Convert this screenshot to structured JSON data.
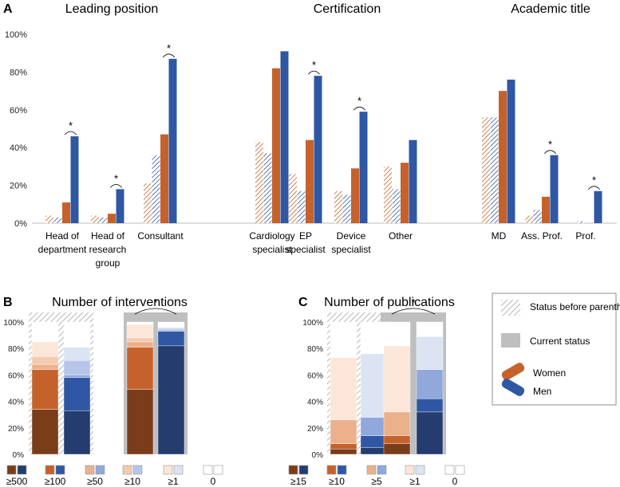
{
  "colors": {
    "women": "#c5622c",
    "men": "#2f57a3",
    "axis": "#bdbdbd",
    "women_shades": [
      "#7a3d1a",
      "#c5622c",
      "#ebb18b",
      "#f5cbb0",
      "#fbe6d9",
      "#ffffff"
    ],
    "men_shades": [
      "#243c6e",
      "#2f57a3",
      "#90a8dc",
      "#b7c6e8",
      "#dce4f4",
      "#ffffff"
    ],
    "current_frame": "#bfbfbf",
    "hatch_frame": "#c8c8c8"
  },
  "panel_a": {
    "label": "A",
    "y_ticks": [
      "100%",
      "80%",
      "60%",
      "40%",
      "20%",
      "0%"
    ],
    "star": "*",
    "sections": [
      {
        "title": "Leading position"
      },
      {
        "title": "Certification"
      },
      {
        "title": "Academic title"
      }
    ],
    "chart_data": {
      "type": "bar",
      "title": "",
      "ylim": [
        0,
        100
      ],
      "unit": "%",
      "series": [
        {
          "name": "Women – before parenthood (hatched)"
        },
        {
          "name": "Men – before parenthood (hatched)"
        },
        {
          "name": "Women – current status"
        },
        {
          "name": "Men – current status"
        }
      ],
      "groups": [
        {
          "label_lines": [
            "Head of",
            "department"
          ],
          "section": 0,
          "values": [
            4,
            3,
            11,
            46
          ],
          "sig": true
        },
        {
          "label_lines": [
            "Head of",
            "research",
            "group"
          ],
          "section": 0,
          "values": [
            4,
            3,
            5,
            18
          ],
          "sig": true
        },
        {
          "label_lines": [
            "Consultant"
          ],
          "section": 0,
          "values": [
            21,
            36,
            47,
            87
          ],
          "sig": true
        },
        {
          "label_lines": [
            "Cardiology",
            "specialist"
          ],
          "section": 1,
          "values": [
            43,
            37,
            82,
            91
          ],
          "sig": false
        },
        {
          "label_lines": [
            "EP",
            "specialist"
          ],
          "section": 1,
          "values": [
            26,
            17,
            44,
            78
          ],
          "sig": true
        },
        {
          "label_lines": [
            "Device",
            "specialist"
          ],
          "section": 1,
          "values": [
            17,
            15,
            29,
            59
          ],
          "sig": true
        },
        {
          "label_lines": [
            "Other"
          ],
          "section": 1,
          "values": [
            30,
            18,
            32,
            44
          ],
          "sig": false
        },
        {
          "label_lines": [
            "MD"
          ],
          "section": 2,
          "values": [
            56,
            56,
            70,
            76
          ],
          "sig": false
        },
        {
          "label_lines": [
            "Ass. Prof."
          ],
          "section": 2,
          "values": [
            4,
            7,
            14,
            36
          ],
          "sig": true
        },
        {
          "label_lines": [
            "Prof."
          ],
          "section": 2,
          "values": [
            0,
            1,
            0,
            17
          ],
          "sig": true
        }
      ]
    }
  },
  "panel_b": {
    "label": "B",
    "title": "Number of interventions",
    "y_ticks": [
      "100%",
      "80%",
      "60%",
      "40%",
      "20%",
      "0%"
    ],
    "star": "*",
    "legend_labels": [
      "≥500",
      "≥100",
      "≥50",
      "≥10",
      "≥1",
      "0"
    ],
    "chart_data": {
      "type": "bar",
      "stacked": true,
      "ylim": [
        0,
        100
      ],
      "categories": [
        "≥500",
        "≥100",
        "≥50",
        "≥10",
        "≥1",
        "0"
      ],
      "bars": [
        {
          "name": "Women – before parenthood",
          "segments": [
            34,
            30,
            4,
            6,
            11,
            15
          ]
        },
        {
          "name": "Men – before parenthood",
          "segments": [
            33,
            25,
            2,
            11,
            10,
            19
          ]
        },
        {
          "name": "Women – current status",
          "segments": [
            49,
            32,
            4,
            3,
            10,
            2
          ]
        },
        {
          "name": "Men – current status",
          "segments": [
            82,
            11,
            1,
            1,
            1,
            4
          ]
        }
      ]
    }
  },
  "panel_c": {
    "label": "C",
    "title": "Number of publications",
    "y_ticks": [
      "100%",
      "80%",
      "60%",
      "40%",
      "20%",
      "0%"
    ],
    "star": "*",
    "legend_labels": [
      "≥15",
      "≥10",
      "≥5",
      "≥1",
      "0"
    ],
    "chart_data": {
      "type": "bar",
      "stacked": true,
      "ylim": [
        0,
        100
      ],
      "categories": [
        "≥15",
        "≥10",
        "≥5",
        "≥1",
        "0"
      ],
      "bars": [
        {
          "name": "Women – before parenthood",
          "segments": [
            4,
            4,
            18,
            47,
            27
          ]
        },
        {
          "name": "Men – before parenthood",
          "segments": [
            5,
            9,
            14,
            48,
            24
          ]
        },
        {
          "name": "Women – current status",
          "segments": [
            8,
            6,
            18,
            50,
            18
          ]
        },
        {
          "name": "Men – current status",
          "segments": [
            32,
            10,
            22,
            25,
            11
          ]
        }
      ]
    }
  },
  "legend": {
    "hatched": "Status before parenthood",
    "solid": "Current status",
    "women": "Women",
    "men": "Men"
  }
}
